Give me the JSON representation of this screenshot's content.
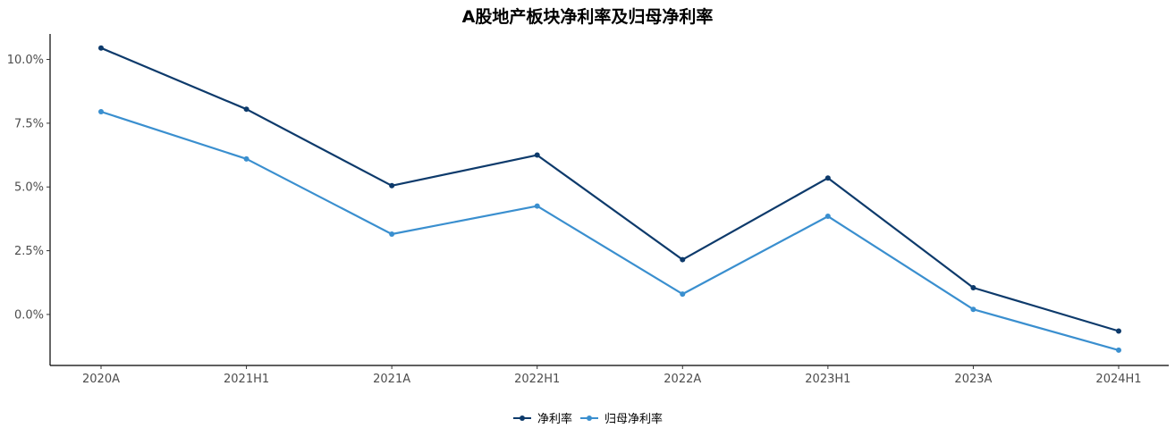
{
  "chart_data": {
    "type": "line",
    "title": "A股地产板块净利率及归母净利率",
    "xlabel": "",
    "ylabel": "",
    "categories": [
      "2020A",
      "2021H1",
      "2021A",
      "2022H1",
      "2022A",
      "2023H1",
      "2023A",
      "2024H1"
    ],
    "ylim": [
      -2.0,
      11.0
    ],
    "yticks": [
      "10.0%",
      "7.5%",
      "5.0%",
      "2.5%",
      "0.0%"
    ],
    "ytick_values": [
      10.0,
      7.5,
      5.0,
      2.5,
      0.0
    ],
    "grid": false,
    "legend_position": "bottom",
    "series": [
      {
        "name": "净利率",
        "color": "#0d3a6b",
        "values": [
          10.45,
          8.05,
          5.05,
          6.25,
          2.15,
          5.35,
          1.05,
          -0.65
        ]
      },
      {
        "name": "归母净利率",
        "color": "#3a8fcf",
        "values": [
          7.95,
          6.1,
          3.15,
          4.25,
          0.8,
          3.85,
          0.2,
          -1.4
        ]
      }
    ]
  }
}
